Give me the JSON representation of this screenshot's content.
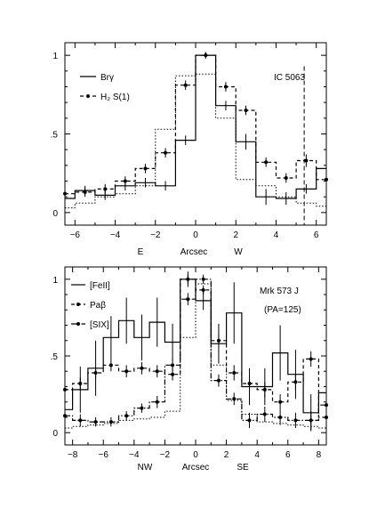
{
  "chart_data": [
    {
      "type": "line",
      "step": true,
      "xlim": [
        -6.5,
        6.5
      ],
      "ylim": [
        -0.08,
        1.08
      ],
      "xticks": [
        -6,
        -4,
        -2,
        0,
        2,
        4,
        6
      ],
      "yticks": [
        0,
        0.5,
        1
      ],
      "ytick_labels": [
        "0",
        ".5",
        "1"
      ],
      "xlabel": "Arcsec",
      "x_direction_left": "E",
      "x_direction_right": "W",
      "annotation": "IC 5063",
      "vline_x": 5.4,
      "legend_position": "top-left",
      "series": [
        {
          "name": "Brγ",
          "style": "solid",
          "marker": false,
          "x": [
            -6.5,
            -5.5,
            -4.5,
            -3.5,
            -2.5,
            -1.5,
            -0.5,
            0.5,
            1.5,
            2.5,
            3.5,
            4.5,
            5.5,
            6.5
          ],
          "values": [
            0.09,
            0.14,
            0.11,
            0.17,
            0.19,
            0.17,
            0.46,
            1.0,
            0.68,
            0.45,
            0.1,
            0.09,
            0.15,
            0.28
          ],
          "errors": [
            0.05,
            0.03,
            0.03,
            0.03,
            0.03,
            0.03,
            0.03,
            0.02,
            0.03,
            0.05,
            0.05,
            0.04,
            0.03,
            0.05
          ]
        },
        {
          "name": "H₂ S(1)",
          "style": "dashed",
          "marker": true,
          "x": [
            -6.5,
            -5.5,
            -4.5,
            -3.5,
            -2.5,
            -1.5,
            -0.5,
            0.5,
            1.5,
            2.5,
            3.5,
            4.5,
            5.5,
            6.5
          ],
          "values": [
            0.12,
            0.13,
            0.15,
            0.2,
            0.28,
            0.38,
            0.81,
            1.0,
            0.8,
            0.65,
            0.32,
            0.22,
            0.33,
            0.21
          ],
          "errors": [
            0.03,
            0.03,
            0.03,
            0.03,
            0.03,
            0.03,
            0.03,
            0.02,
            0.03,
            0.03,
            0.03,
            0.03,
            0.04,
            0.04
          ]
        },
        {
          "name": "",
          "style": "dotted",
          "marker": false,
          "x": [
            -6.5,
            -5.5,
            -4.5,
            -3.5,
            -2.5,
            -1.5,
            -0.5,
            0.5,
            1.5,
            2.5,
            3.5,
            4.5,
            5.5,
            6.5
          ],
          "values": [
            0.03,
            0.06,
            0.1,
            0.12,
            0.17,
            0.53,
            0.87,
            0.88,
            0.6,
            0.21,
            0.17,
            0.1,
            0.06,
            0.04
          ]
        }
      ]
    },
    {
      "type": "line",
      "step": true,
      "xlim": [
        -8.5,
        8.5
      ],
      "ylim": [
        -0.08,
        1.08
      ],
      "xticks": [
        -8,
        -6,
        -4,
        -2,
        0,
        2,
        4,
        6,
        8
      ],
      "yticks": [
        0,
        0.5,
        1
      ],
      "ytick_labels": [
        "0",
        ".5",
        "1"
      ],
      "xlabel": "Arcsec",
      "x_direction_left": "NW",
      "x_direction_right": "SE",
      "annotation": "Mrk 573 J",
      "annotation2": "(PA=125)",
      "legend_position": "top-left",
      "series": [
        {
          "name": "[FeII]",
          "style": "solid",
          "marker": false,
          "x": [
            -8.5,
            -7.5,
            -6.5,
            -5.5,
            -4.5,
            -3.5,
            -2.5,
            -1.5,
            -0.5,
            0.5,
            1.5,
            2.5,
            3.5,
            4.5,
            5.5,
            6.5,
            7.5,
            8.5
          ],
          "values": [
            0.15,
            0.28,
            0.42,
            0.62,
            0.73,
            0.62,
            0.72,
            0.59,
            1.0,
            0.86,
            0.58,
            0.78,
            0.3,
            0.3,
            0.52,
            0.38,
            0.13,
            0.26
          ],
          "errors": [
            0.12,
            0.15,
            0.18,
            0.14,
            0.15,
            0.15,
            0.16,
            0.12,
            0.05,
            0.06,
            0.13,
            0.2,
            0.12,
            0.12,
            0.18,
            0.16,
            0.12,
            0.18
          ]
        },
        {
          "name": "Paβ",
          "style": "dashed",
          "marker": true,
          "x": [
            -8.5,
            -7.5,
            -6.5,
            -5.5,
            -4.5,
            -3.5,
            -2.5,
            -1.5,
            -0.5,
            0.5,
            1.5,
            2.5,
            3.5,
            4.5,
            5.5,
            6.5,
            7.5,
            8.5
          ],
          "values": [
            0.28,
            0.32,
            0.39,
            0.44,
            0.4,
            0.42,
            0.4,
            0.38,
            1.0,
            0.93,
            0.6,
            0.39,
            0.32,
            0.28,
            0.2,
            0.33,
            0.48,
            0.1
          ],
          "errors": [
            0.04,
            0.04,
            0.04,
            0.04,
            0.04,
            0.04,
            0.04,
            0.04,
            0.03,
            0.03,
            0.04,
            0.05,
            0.05,
            0.05,
            0.05,
            0.05,
            0.05,
            0.05
          ]
        },
        {
          "name": "[SIX]",
          "style": "dashdot",
          "marker": true,
          "x": [
            -8.5,
            -7.5,
            -6.5,
            -5.5,
            -4.5,
            -3.5,
            -2.5,
            -1.5,
            -0.5,
            0.5,
            1.5,
            2.5,
            3.5,
            4.5,
            5.5,
            6.5,
            7.5,
            8.5
          ],
          "values": [
            0.11,
            0.08,
            0.07,
            0.07,
            0.11,
            0.16,
            0.2,
            0.44,
            0.87,
            1.0,
            0.34,
            0.22,
            0.08,
            0.12,
            0.1,
            0.08,
            0.08,
            0.18
          ],
          "errors": [
            0.08,
            0.04,
            0.03,
            0.03,
            0.03,
            0.03,
            0.04,
            0.04,
            0.04,
            0.03,
            0.04,
            0.04,
            0.05,
            0.05,
            0.05,
            0.05,
            0.06,
            0.06
          ]
        },
        {
          "name": "",
          "style": "dotted",
          "marker": false,
          "x": [
            -8.5,
            -7.5,
            -6.5,
            -5.5,
            -4.5,
            -3.5,
            -2.5,
            -1.5,
            -0.5,
            0.5,
            1.5,
            2.5,
            3.5,
            4.5,
            5.5,
            6.5,
            7.5,
            8.5
          ],
          "values": [
            0.03,
            0.04,
            0.05,
            0.06,
            0.08,
            0.09,
            0.1,
            0.14,
            0.62,
            0.97,
            0.44,
            0.21,
            0.12,
            0.07,
            0.06,
            0.05,
            0.04,
            0.03
          ]
        }
      ]
    }
  ]
}
